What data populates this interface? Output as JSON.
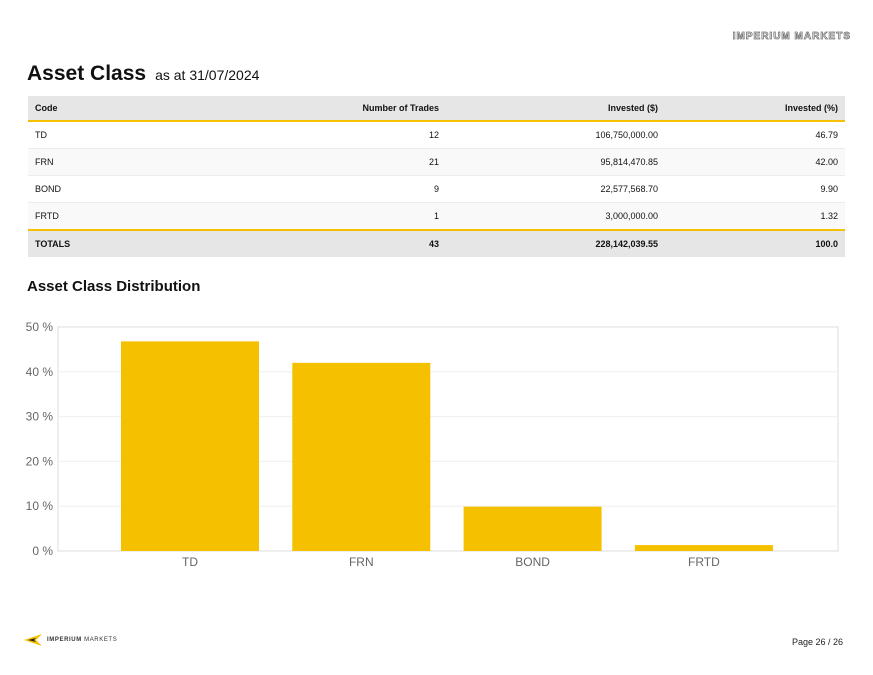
{
  "header": {
    "mark": "IMPERIUM MARKETS"
  },
  "title": {
    "main": "Asset Class",
    "sub": "as at 31/07/2024"
  },
  "table": {
    "columns": [
      "Code",
      "Number of Trades",
      "Invested ($)",
      "Invested (%)"
    ],
    "rows": [
      {
        "code": "TD",
        "trades": "12",
        "invested": "106,750,000.00",
        "pct": "46.79"
      },
      {
        "code": "FRN",
        "trades": "21",
        "invested": "95,814,470.85",
        "pct": "42.00"
      },
      {
        "code": "BOND",
        "trades": "9",
        "invested": "22,577,568.70",
        "pct": "9.90"
      },
      {
        "code": "FRTD",
        "trades": "1",
        "invested": "3,000,000.00",
        "pct": "1.32"
      }
    ],
    "totals": {
      "label": "TOTALS",
      "trades": "43",
      "invested": "228,142,039.55",
      "pct": "100.0"
    },
    "accent": "#f5c000"
  },
  "section": {
    "title": "Asset Class Distribution"
  },
  "chart_data": {
    "type": "bar",
    "title": "",
    "categories": [
      "TD",
      "FRN",
      "BOND",
      "FRTD"
    ],
    "values": [
      46.79,
      42.0,
      9.9,
      1.32
    ],
    "ylim": [
      0,
      50
    ],
    "yticks": [
      0,
      10,
      20,
      30,
      40,
      50
    ],
    "ytick_suffix": " %",
    "color": "#f5c000",
    "grid": true
  },
  "footer": {
    "logo_bold": "IMPERIUM",
    "logo_light": "MARKETS",
    "page": "Page 26 / 26"
  }
}
